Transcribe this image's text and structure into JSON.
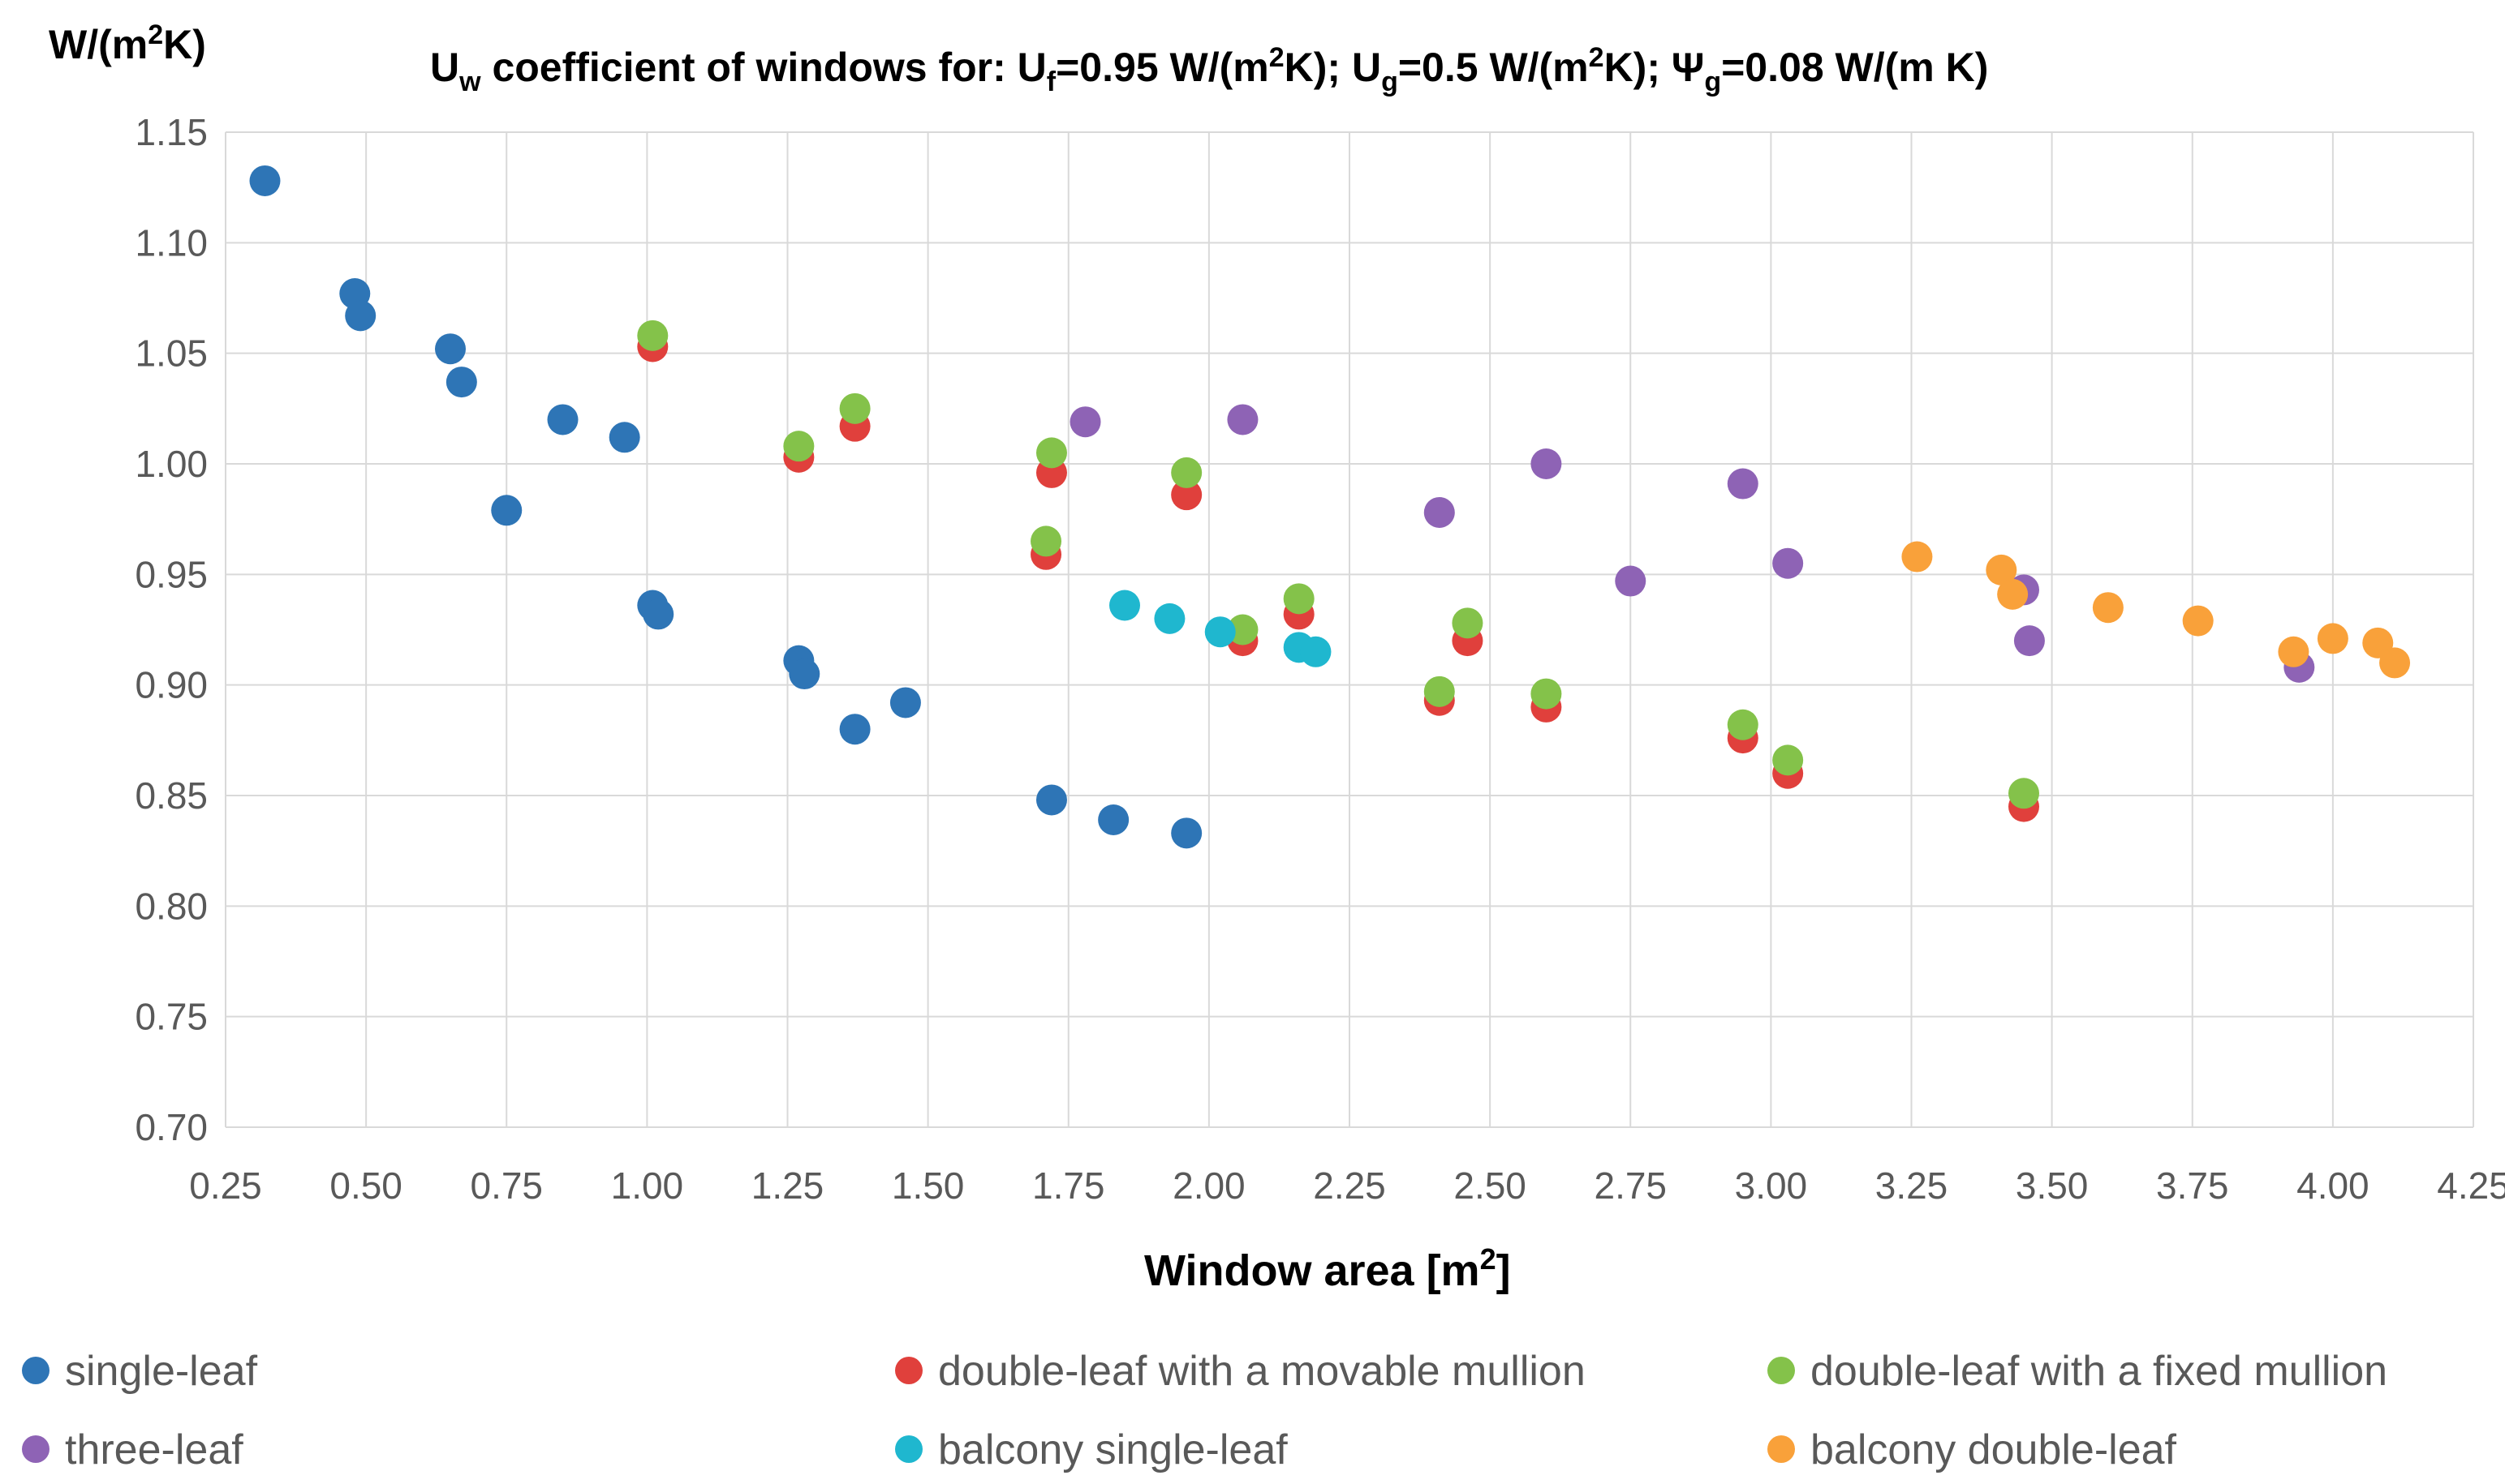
{
  "chart_data": {
    "type": "scatter",
    "title": "U_w coefficient of windows for: U_f=0.95 W/(m²K); U_g=0.5 W/(m²K); Ψ_g=0.08 W/(m K)",
    "title_parts": {
      "p1": "U",
      "s1": "w",
      "p2": " coefficient of windows for: U",
      "s2": "f",
      "p3": "=0.95 W/(m",
      "sup1": "2",
      "p4": "K); U",
      "s3": "g",
      "p5": "=0.5 W/(m",
      "sup2": "2",
      "p6": "K); Ψ",
      "s4": "g",
      "p7": "=0.08 W/(m K)"
    },
    "ylabel": "W/(m²K)",
    "ylabel_parts": {
      "p1": "W/(m",
      "sup": "2",
      "p2": "K)"
    },
    "xlabel": "Window area [m²]",
    "xlabel_parts": {
      "p1": "Window area [m",
      "sup": "2",
      "p2": "]"
    },
    "xlim": [
      0.25,
      4.25
    ],
    "ylim": [
      0.7,
      1.15
    ],
    "x_ticks": [
      "0.25",
      "0.50",
      "0.75",
      "1.00",
      "1.25",
      "1.50",
      "1.75",
      "2.00",
      "2.25",
      "2.50",
      "2.75",
      "3.00",
      "3.25",
      "3.50",
      "3.75",
      "4.00",
      "4.25"
    ],
    "y_ticks": [
      "0.70",
      "0.75",
      "0.80",
      "0.85",
      "0.90",
      "0.95",
      "1.00",
      "1.05",
      "1.10",
      "1.15"
    ],
    "grid": true,
    "legend_position": "bottom",
    "series": [
      {
        "name": "single-leaf",
        "color": "#2e75b6",
        "points": [
          [
            0.32,
            1.128
          ],
          [
            0.48,
            1.077
          ],
          [
            0.49,
            1.067
          ],
          [
            0.65,
            1.052
          ],
          [
            0.67,
            1.037
          ],
          [
            0.75,
            0.979
          ],
          [
            0.85,
            1.02
          ],
          [
            0.96,
            1.012
          ],
          [
            1.01,
            0.936
          ],
          [
            1.02,
            0.932
          ],
          [
            1.27,
            0.911
          ],
          [
            1.28,
            0.905
          ],
          [
            1.37,
            0.88
          ],
          [
            1.46,
            0.892
          ],
          [
            1.72,
            0.848
          ],
          [
            1.83,
            0.839
          ],
          [
            1.96,
            0.833
          ]
        ]
      },
      {
        "name": "double-leaf with a movable mullion",
        "color": "#e0403c",
        "points": [
          [
            1.01,
            1.053
          ],
          [
            1.27,
            1.003
          ],
          [
            1.37,
            1.017
          ],
          [
            1.71,
            0.959
          ],
          [
            1.72,
            0.996
          ],
          [
            1.96,
            0.986
          ],
          [
            2.06,
            0.92
          ],
          [
            2.16,
            0.932
          ],
          [
            2.41,
            0.893
          ],
          [
            2.46,
            0.92
          ],
          [
            2.6,
            0.89
          ],
          [
            2.95,
            0.876
          ],
          [
            3.03,
            0.86
          ],
          [
            3.45,
            0.845
          ]
        ]
      },
      {
        "name": "double-leaf with a fixed mullion",
        "color": "#84c24a",
        "points": [
          [
            1.01,
            1.058
          ],
          [
            1.27,
            1.008
          ],
          [
            1.37,
            1.025
          ],
          [
            1.71,
            0.965
          ],
          [
            1.72,
            1.005
          ],
          [
            1.96,
            0.996
          ],
          [
            2.06,
            0.925
          ],
          [
            2.16,
            0.939
          ],
          [
            2.41,
            0.897
          ],
          [
            2.46,
            0.928
          ],
          [
            2.6,
            0.896
          ],
          [
            2.95,
            0.882
          ],
          [
            3.03,
            0.866
          ],
          [
            3.45,
            0.851
          ]
        ]
      },
      {
        "name": "three-leaf",
        "color": "#8e63b5",
        "points": [
          [
            1.78,
            1.019
          ],
          [
            2.06,
            1.02
          ],
          [
            2.41,
            0.978
          ],
          [
            2.6,
            1.0
          ],
          [
            2.75,
            0.947
          ],
          [
            2.95,
            0.991
          ],
          [
            3.03,
            0.955
          ],
          [
            3.45,
            0.943
          ],
          [
            3.46,
            0.92
          ],
          [
            3.94,
            0.908
          ]
        ]
      },
      {
        "name": "balcony single-leaf",
        "color": "#1fb7cf",
        "points": [
          [
            1.85,
            0.936
          ],
          [
            1.93,
            0.93
          ],
          [
            2.02,
            0.924
          ],
          [
            2.16,
            0.917
          ],
          [
            2.19,
            0.915
          ]
        ]
      },
      {
        "name": "balcony double-leaf",
        "color": "#f9a13a",
        "points": [
          [
            3.26,
            0.958
          ],
          [
            3.41,
            0.952
          ],
          [
            3.43,
            0.941
          ],
          [
            3.6,
            0.935
          ],
          [
            3.76,
            0.929
          ],
          [
            3.93,
            0.915
          ],
          [
            4.0,
            0.921
          ],
          [
            4.08,
            0.919
          ],
          [
            4.11,
            0.91
          ]
        ]
      }
    ]
  }
}
